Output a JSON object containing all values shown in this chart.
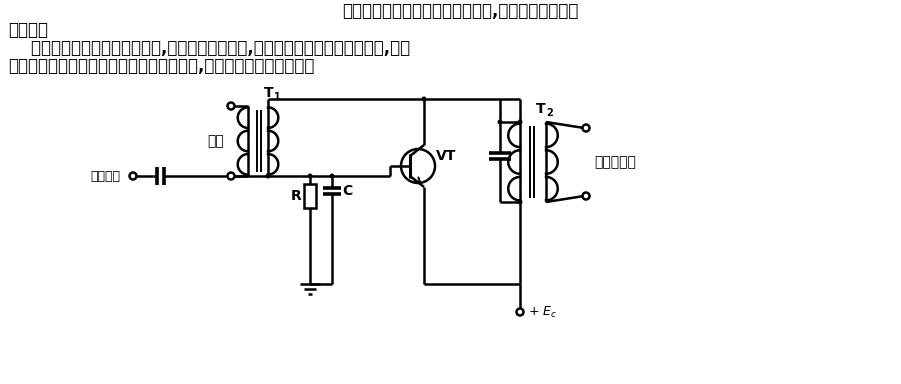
{
  "text_line1": "它的工作状态与基极调幅电路相似,只是需要较大的调",
  "text_line2": "制电流。",
  "text_line3": "    如果将调制信号从发射极加入,使发射极电流变化,就会使集电极电流也发生变化,从而",
  "text_line4": "达到调幅的目的。由于电路是基极接地方式,所以它的工作频率较高。",
  "label_carrier": "载波",
  "label_mod_signal": "调制信号",
  "label_R": "R",
  "label_C": "C",
  "label_VT": "VT",
  "label_T1": "T",
  "label_T1_sub": "1",
  "label_T2": "T",
  "label_T2_sub": "2",
  "label_output": "调幅波输出",
  "label_Ec": "+ Ec",
  "bg_color": "#ffffff",
  "line_color": "#000000"
}
